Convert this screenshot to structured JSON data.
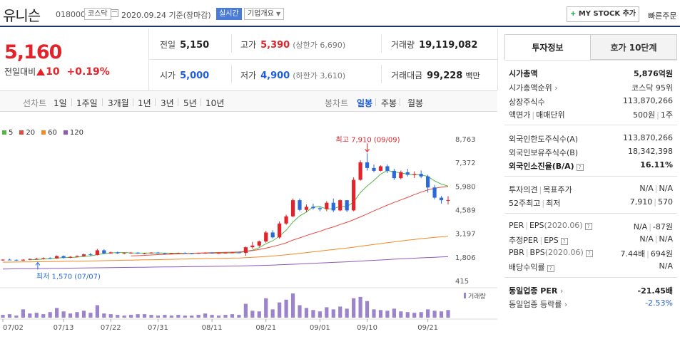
{
  "header": {
    "name": "유니슨",
    "code": "018000",
    "market": "코스닥",
    "date_text": "2020.09.24 기준(장마감)",
    "realtime": "실시간",
    "company_info": "기업개요",
    "mystock_label": "MY STOCK 추가",
    "quick_order": "빠른주문"
  },
  "price": {
    "current": "5,160",
    "change_label": "전일대비",
    "change": "10",
    "change_pct": "+0.19%"
  },
  "metrics": {
    "prev_close": {
      "label": "전일",
      "value": "5,150"
    },
    "high": {
      "label": "고가",
      "value": "5,390",
      "sub": "(상한가 6,690)"
    },
    "volume": {
      "label": "거래량",
      "value": "19,119,082"
    },
    "open": {
      "label": "시가",
      "value": "5,000"
    },
    "low": {
      "label": "저가",
      "value": "4,900",
      "sub": "(하한가 3,610)"
    },
    "amount": {
      "label": "거래대금",
      "value": "99,228",
      "unit": "백만"
    }
  },
  "period_tabs": {
    "lead": "선차트",
    "items": [
      "1일",
      "1주일",
      "3개월",
      "1년",
      "3년",
      "5년",
      "10년"
    ],
    "type_lead": "봉차트",
    "type_items": [
      "일봉",
      "주봉",
      "월봉"
    ],
    "active_type": "일봉"
  },
  "chart_data": {
    "type": "candlestick",
    "ma_legend": [
      {
        "label": "5",
        "color": "#53b848"
      },
      {
        "label": "20",
        "color": "#e8493f"
      },
      {
        "label": "60",
        "color": "#f08a24"
      },
      {
        "label": "120",
        "color": "#8e5ab9"
      }
    ],
    "y_ticks": [
      "8,763",
      "7,372",
      "5,980",
      "4,589",
      "3,197",
      "1,806",
      "415"
    ],
    "ylim": [
      415,
      8763
    ],
    "x_ticks": [
      "07/02",
      "07/13",
      "07/22",
      "07/31",
      "08/11",
      "08/21",
      "09/01",
      "09/10",
      "09/21"
    ],
    "x_tick_index": [
      0,
      9,
      16,
      23,
      31,
      39,
      47,
      54,
      63
    ],
    "volume_label": "거래량",
    "high_annotation": "최고 7,910 (09/09)",
    "low_annotation": "최저 1,570 (07/07)",
    "ohlc": [
      [
        1620,
        1680,
        1580,
        1650
      ],
      [
        1650,
        1700,
        1610,
        1640
      ],
      [
        1640,
        1660,
        1570,
        1600
      ],
      [
        1600,
        1670,
        1570,
        1650
      ],
      [
        1650,
        1720,
        1620,
        1690
      ],
      [
        1690,
        1760,
        1650,
        1700
      ],
      [
        1700,
        1780,
        1660,
        1740
      ],
      [
        1740,
        1790,
        1700,
        1720
      ],
      [
        1720,
        1900,
        1700,
        1860
      ],
      [
        1860,
        1900,
        1720,
        1760
      ],
      [
        1760,
        1850,
        1740,
        1820
      ],
      [
        1820,
        1900,
        1780,
        1860
      ],
      [
        1860,
        2000,
        1820,
        1960
      ],
      [
        1960,
        2050,
        1880,
        1920
      ],
      [
        1920,
        2280,
        1900,
        2200
      ],
      [
        2200,
        2260,
        1980,
        2020
      ],
      [
        2020,
        2120,
        1990,
        2080
      ],
      [
        2080,
        2120,
        1990,
        2020
      ],
      [
        2020,
        2060,
        1980,
        2040
      ],
      [
        2040,
        2100,
        2000,
        2060
      ],
      [
        2060,
        2080,
        1990,
        2010
      ],
      [
        2010,
        2050,
        1970,
        2030
      ],
      [
        2030,
        2090,
        2010,
        2060
      ],
      [
        2060,
        2100,
        2010,
        2020
      ],
      [
        2020,
        2060,
        1980,
        2010
      ],
      [
        2010,
        2050,
        1980,
        2030
      ],
      [
        2030,
        2070,
        2000,
        2040
      ],
      [
        2040,
        2080,
        2000,
        2020
      ],
      [
        2020,
        2050,
        1990,
        2010
      ],
      [
        2010,
        2060,
        1990,
        2040
      ],
      [
        2040,
        2080,
        2010,
        2050
      ],
      [
        2050,
        2090,
        2020,
        2030
      ],
      [
        2030,
        2060,
        2000,
        2040
      ],
      [
        2040,
        2080,
        2020,
        2060
      ],
      [
        2060,
        2100,
        2030,
        2070
      ],
      [
        2070,
        2110,
        2030,
        2050
      ],
      [
        2050,
        2420,
        1880,
        2380
      ],
      [
        2380,
        2700,
        2300,
        2480
      ],
      [
        2480,
        2780,
        2400,
        2720
      ],
      [
        2720,
        3350,
        2650,
        3250
      ],
      [
        3250,
        3380,
        2900,
        2960
      ],
      [
        2960,
        3900,
        2880,
        3780
      ],
      [
        3780,
        4300,
        3700,
        4200
      ],
      [
        4200,
        5250,
        4150,
        5150
      ],
      [
        5150,
        5250,
        4500,
        4580
      ],
      [
        4580,
        4900,
        4450,
        4760
      ],
      [
        4760,
        4950,
        4600,
        4680
      ],
      [
        4680,
        4800,
        4500,
        4620
      ],
      [
        4620,
        5100,
        4500,
        5000
      ],
      [
        5000,
        5250,
        4450,
        4550
      ],
      [
        4550,
        5200,
        4500,
        5150
      ],
      [
        5150,
        5150,
        4450,
        4550
      ],
      [
        4550,
        6500,
        4500,
        6350
      ],
      [
        6350,
        7500,
        6300,
        7380
      ],
      [
        7380,
        7910,
        6900,
        7050
      ],
      [
        7050,
        7250,
        6800,
        6880
      ],
      [
        6880,
        7200,
        6850,
        7150
      ],
      [
        7150,
        7250,
        6750,
        6880
      ],
      [
        6880,
        7000,
        6350,
        6450
      ],
      [
        6450,
        6900,
        6380,
        6800
      ],
      [
        6800,
        7000,
        6550,
        6650
      ],
      [
        6650,
        6850,
        6450,
        6700
      ],
      [
        6700,
        6900,
        6450,
        6550
      ],
      [
        6550,
        6650,
        5600,
        5900
      ],
      [
        5900,
        6050,
        5200,
        5300
      ],
      [
        5300,
        5400,
        4950,
        5150
      ],
      [
        5150,
        5390,
        4900,
        5160
      ]
    ],
    "volume": [
      4,
      5,
      3,
      12,
      6,
      7,
      5,
      8,
      14,
      9,
      6,
      8,
      10,
      7,
      18,
      6,
      5,
      4,
      3,
      4,
      5,
      5,
      4,
      3,
      4,
      3,
      4,
      3,
      3,
      4,
      6,
      4,
      3,
      4,
      5,
      4,
      20,
      10,
      9,
      28,
      12,
      22,
      26,
      35,
      18,
      14,
      11,
      9,
      15,
      12,
      16,
      13,
      28,
      30,
      24,
      12,
      11,
      10,
      13,
      9,
      8,
      7,
      8,
      12,
      10,
      9,
      11
    ],
    "ma5": [
      null,
      null,
      null,
      null,
      1646,
      1656,
      1686,
      1706,
      1746,
      1764,
      1780,
      1800,
      1838,
      1866,
      1948,
      1998,
      2046,
      2060,
      2074,
      2048,
      2044,
      2034,
      2046,
      2046,
      2036,
      2030,
      2032,
      2026,
      2022,
      2026,
      2034,
      2030,
      2034,
      2044,
      2052,
      2052,
      2140,
      2210,
      2354,
      2586,
      2758,
      3038,
      3382,
      3868,
      4224,
      4454,
      4762,
      4766,
      4644,
      4648,
      4792,
      4774,
      5040,
      5596,
      5992,
      6312,
      6692,
      6902,
      6818,
      6752,
      6686,
      6658,
      6636,
      6558,
      6290,
      6104,
      5980
    ],
    "ma20": [
      null,
      null,
      null,
      null,
      null,
      null,
      null,
      null,
      null,
      null,
      null,
      null,
      null,
      null,
      null,
      null,
      null,
      null,
      null,
      1865,
      1885,
      1905,
      1926,
      1945,
      1962,
      1978,
      1994,
      2008,
      2022,
      2036,
      2050,
      2060,
      2070,
      2080,
      2090,
      2100,
      2140,
      2180,
      2250,
      2330,
      2420,
      2520,
      2640,
      2800,
      2930,
      3070,
      3200,
      3320,
      3460,
      3580,
      3720,
      3850,
      4000,
      4170,
      4340,
      4520,
      4690,
      4860,
      5020,
      5170,
      5320,
      5480,
      5630,
      5760,
      5850,
      5920,
      5960
    ],
    "ma60": [
      1500,
      1505,
      1510,
      1515,
      1520,
      1525,
      1530,
      1536,
      1542,
      1548,
      1554,
      1560,
      1566,
      1574,
      1582,
      1590,
      1598,
      1606,
      1614,
      1622,
      1630,
      1638,
      1646,
      1654,
      1662,
      1670,
      1678,
      1686,
      1694,
      1702,
      1710,
      1718,
      1726,
      1734,
      1742,
      1750,
      1768,
      1786,
      1808,
      1836,
      1864,
      1898,
      1934,
      1978,
      2022,
      2066,
      2110,
      2154,
      2200,
      2244,
      2290,
      2334,
      2384,
      2438,
      2492,
      2544,
      2596,
      2648,
      2698,
      2746,
      2794,
      2840,
      2884,
      2924,
      2960,
      2994,
      3030
    ],
    "ma120": [
      1100,
      1105,
      1110,
      1115,
      1120,
      1125,
      1130,
      1135,
      1140,
      1145,
      1150,
      1155,
      1160,
      1165,
      1170,
      1175,
      1180,
      1185,
      1190,
      1195,
      1200,
      1205,
      1210,
      1215,
      1220,
      1225,
      1230,
      1235,
      1240,
      1245,
      1250,
      1255,
      1260,
      1265,
      1270,
      1275,
      1285,
      1295,
      1305,
      1318,
      1331,
      1346,
      1362,
      1380,
      1398,
      1416,
      1434,
      1452,
      1470,
      1488,
      1506,
      1524,
      1544,
      1566,
      1588,
      1610,
      1632,
      1654,
      1676,
      1696,
      1716,
      1736,
      1756,
      1774,
      1792,
      1808,
      1824
    ]
  },
  "panel": {
    "tabs": [
      "투자정보",
      "호가 10단계"
    ],
    "rows": [
      {
        "k": "시가총액",
        "v": "5,876억원"
      },
      {
        "k": "시가총액순위",
        "v": "코스닥 95위"
      },
      {
        "k": "상장주식수",
        "v": "113,870,266"
      },
      {
        "k": "액면가",
        "k2": "매매단위",
        "v": "500원",
        "v2": "1주"
      },
      {
        "k": "외국인한도주식수(A)",
        "v": "113,870,266"
      },
      {
        "k": "외국인보유주식수(B)",
        "v": "18,342,398"
      },
      {
        "k": "외국인소진율(B/A)",
        "v": "16.11%"
      },
      {
        "k": "투자의견",
        "k2": "목표주가",
        "v": "N/A",
        "v2": "N/A"
      },
      {
        "k": "52주최고",
        "k2": "최저",
        "v": "7,910",
        "v2": "570"
      },
      {
        "k": "PER",
        "k2": "EPS",
        "k3": "(2020.06)",
        "v": "N/A",
        "v2": "-87원"
      },
      {
        "k": "추정PER",
        "k2": "EPS",
        "v": "N/A",
        "v2": "N/A"
      },
      {
        "k": "PBR",
        "k2": "BPS",
        "k3": "(2020.06)",
        "v": "7.44배",
        "v2": "694원"
      },
      {
        "k": "배당수익률",
        "v": "N/A"
      },
      {
        "k": "동일업종 PER",
        "v": "-21.45배"
      },
      {
        "k": "동일업종 등락률",
        "v": "-2.53%"
      }
    ]
  }
}
